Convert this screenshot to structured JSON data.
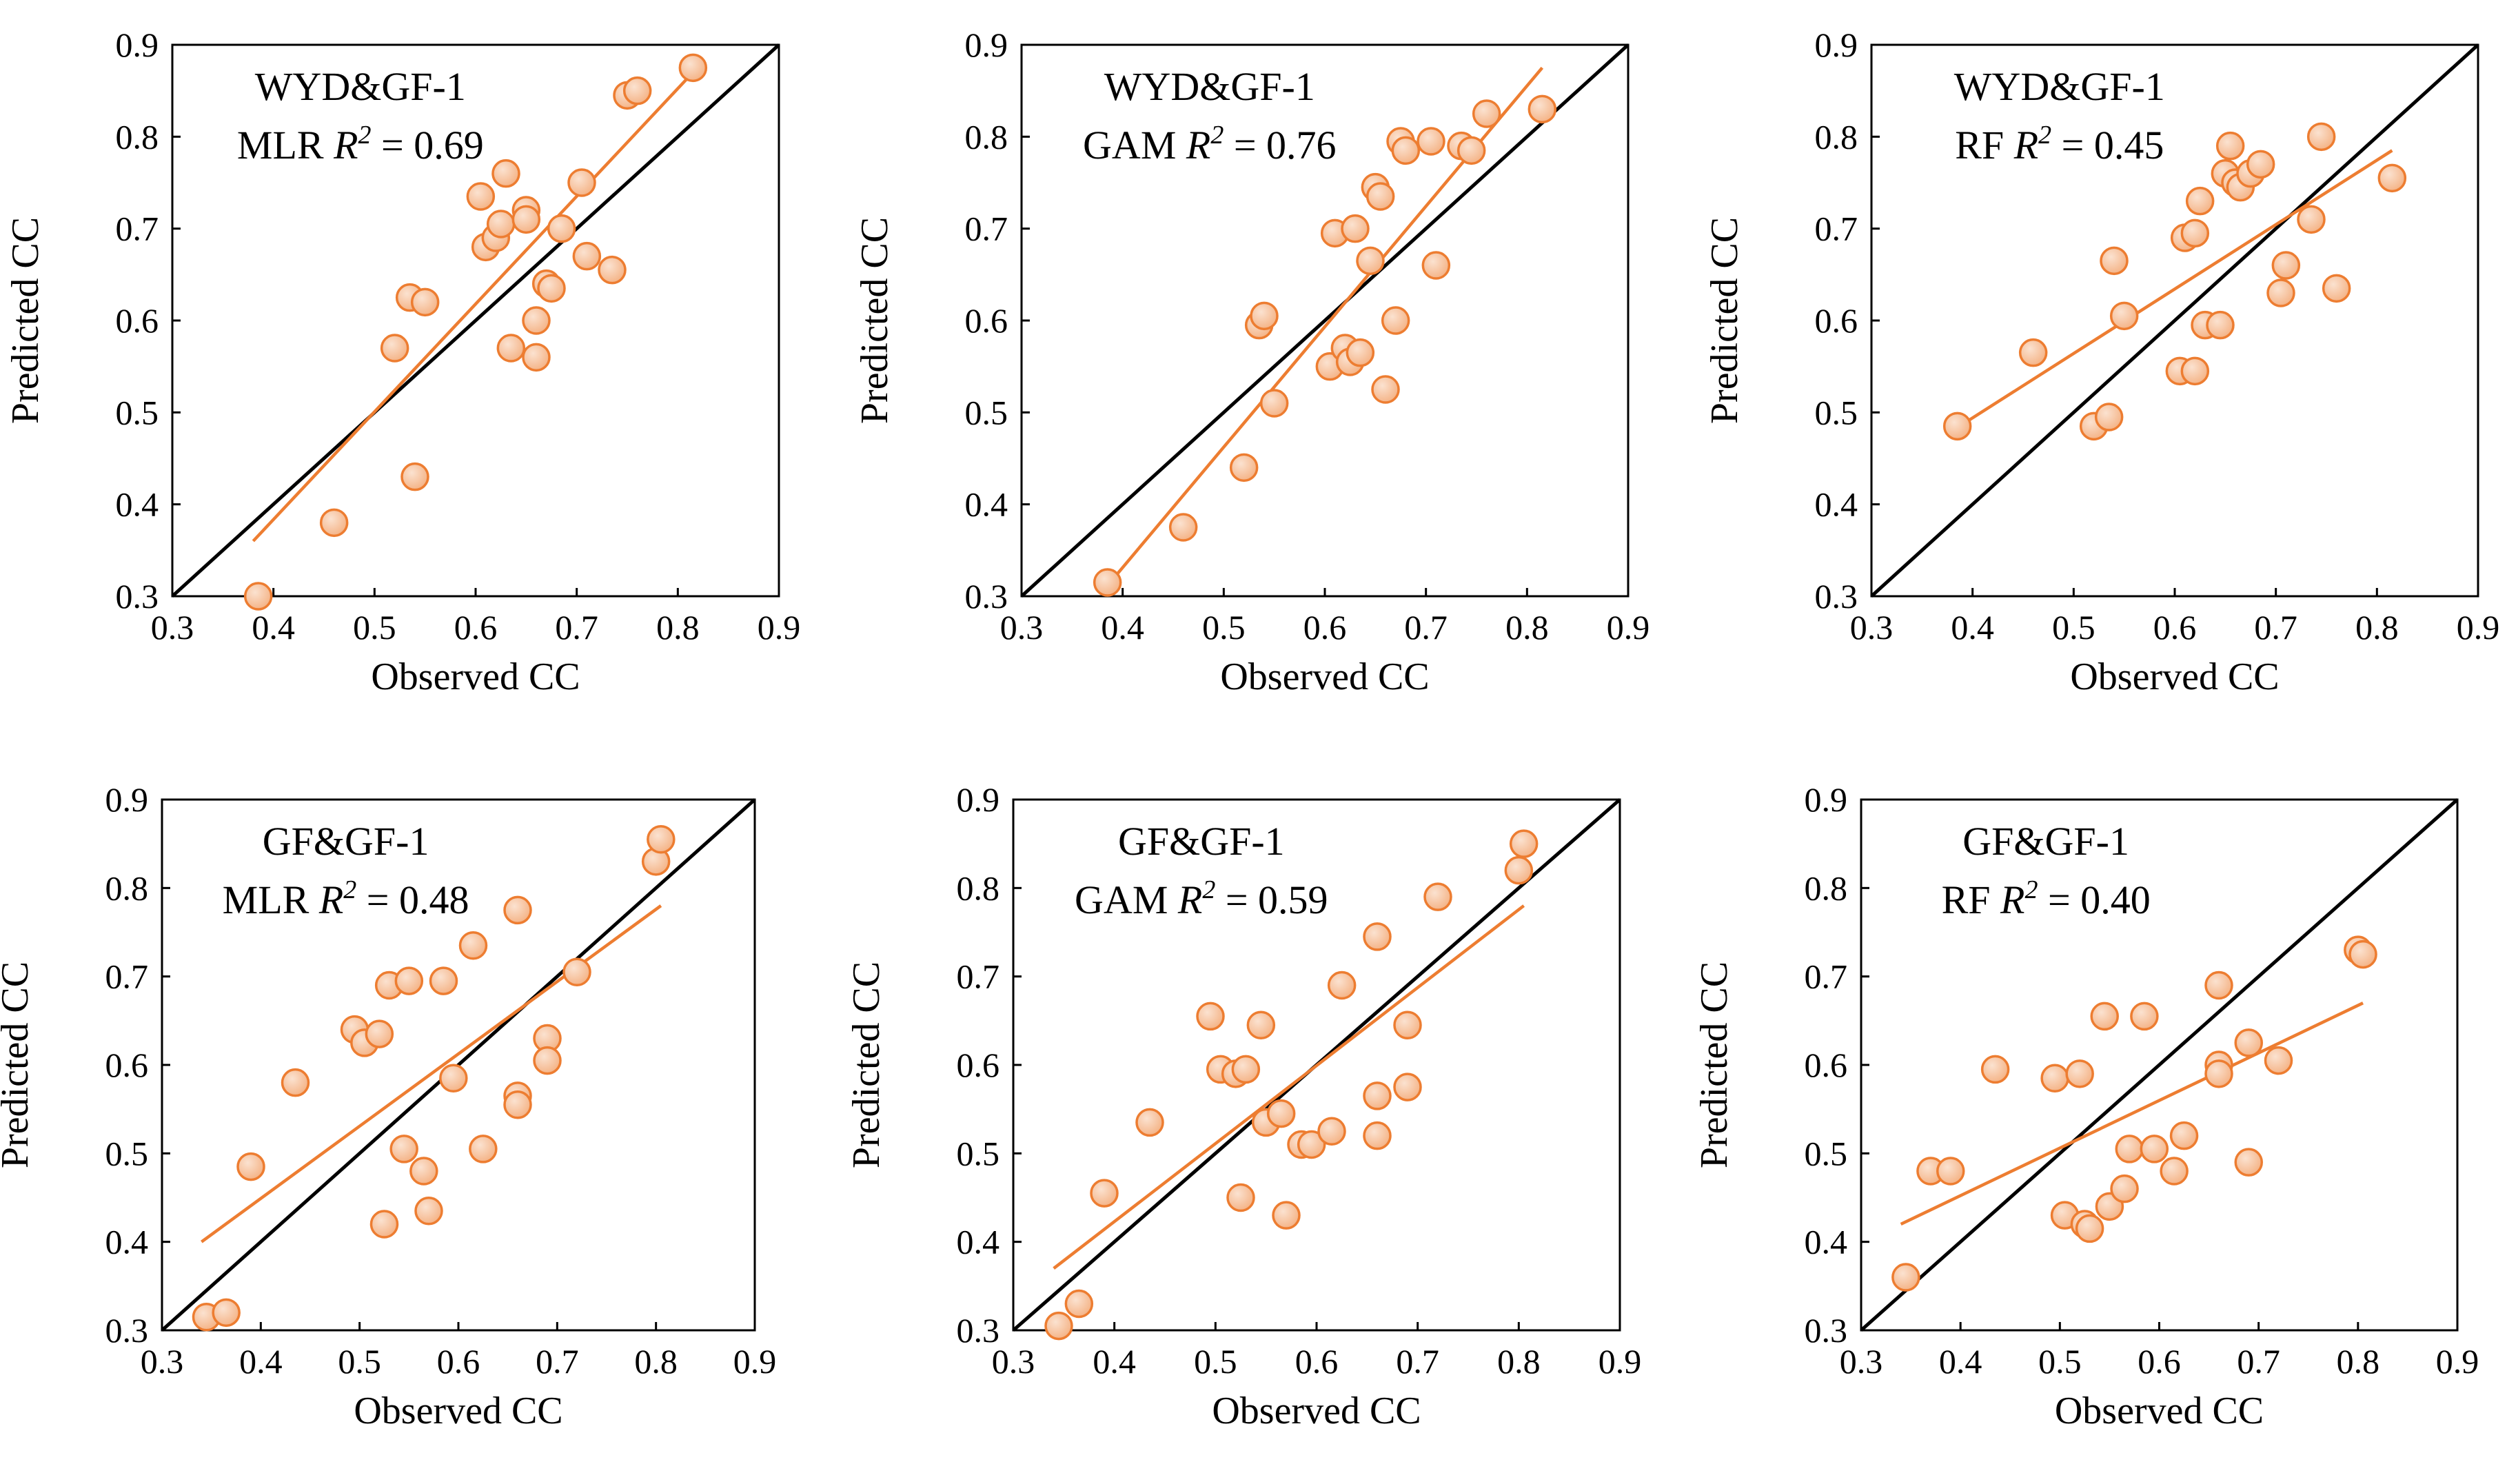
{
  "colors": {
    "point_fill": "#F4B183",
    "point_highlight": "#FBE2D0",
    "point_stroke": "#ED7D31",
    "fit_line": "#ED7D31",
    "one_to_one_line": "#000000",
    "axes": "#000000"
  },
  "chart_data": [
    {
      "type": "scatter",
      "title": "",
      "xlabel": "Observed CC",
      "ylabel": "Predicted CC",
      "xlim": [
        0.3,
        0.9
      ],
      "ylim": [
        0.3,
        0.9
      ],
      "xticks": [
        "0.3",
        "0.4",
        "0.5",
        "0.6",
        "0.7",
        "0.8",
        "0.9"
      ],
      "yticks": [
        "0.3",
        "0.4",
        "0.5",
        "0.6",
        "0.7",
        "0.8",
        "0.9"
      ],
      "annotation": {
        "dataset": "WYD&GF-1",
        "model": "MLR",
        "r2_symbol": "R",
        "r2_exp": "2",
        "r2_text": " = 0.69"
      },
      "fit_line": {
        "x": [
          0.38,
          0.815
        ],
        "y": [
          0.36,
          0.87
        ]
      },
      "one_to_one": [
        0.3,
        0.9
      ],
      "points": [
        {
          "x": 0.385,
          "y": 0.3
        },
        {
          "x": 0.46,
          "y": 0.38
        },
        {
          "x": 0.54,
          "y": 0.43
        },
        {
          "x": 0.52,
          "y": 0.57
        },
        {
          "x": 0.535,
          "y": 0.625
        },
        {
          "x": 0.55,
          "y": 0.62
        },
        {
          "x": 0.605,
          "y": 0.735
        },
        {
          "x": 0.61,
          "y": 0.68
        },
        {
          "x": 0.62,
          "y": 0.69
        },
        {
          "x": 0.625,
          "y": 0.705
        },
        {
          "x": 0.63,
          "y": 0.76
        },
        {
          "x": 0.635,
          "y": 0.57
        },
        {
          "x": 0.65,
          "y": 0.72
        },
        {
          "x": 0.65,
          "y": 0.71
        },
        {
          "x": 0.66,
          "y": 0.6
        },
        {
          "x": 0.66,
          "y": 0.56
        },
        {
          "x": 0.67,
          "y": 0.64
        },
        {
          "x": 0.675,
          "y": 0.635
        },
        {
          "x": 0.685,
          "y": 0.7
        },
        {
          "x": 0.705,
          "y": 0.75
        },
        {
          "x": 0.71,
          "y": 0.67
        },
        {
          "x": 0.735,
          "y": 0.655
        },
        {
          "x": 0.75,
          "y": 0.845
        },
        {
          "x": 0.76,
          "y": 0.85
        },
        {
          "x": 0.815,
          "y": 0.875
        }
      ]
    },
    {
      "type": "scatter",
      "title": "",
      "xlabel": "Observed CC",
      "ylabel": "Predicted CC",
      "xlim": [
        0.3,
        0.9
      ],
      "ylim": [
        0.3,
        0.9
      ],
      "xticks": [
        "0.3",
        "0.4",
        "0.5",
        "0.6",
        "0.7",
        "0.8",
        "0.9"
      ],
      "yticks": [
        "0.3",
        "0.4",
        "0.5",
        "0.6",
        "0.7",
        "0.8",
        "0.9"
      ],
      "annotation": {
        "dataset": "WYD&GF-1",
        "model": "GAM",
        "r2_symbol": "R",
        "r2_exp": "2",
        "r2_text": " = 0.76"
      },
      "fit_line": {
        "x": [
          0.38,
          0.815
        ],
        "y": [
          0.305,
          0.875
        ]
      },
      "one_to_one": [
        0.3,
        0.9
      ],
      "points": [
        {
          "x": 0.385,
          "y": 0.315
        },
        {
          "x": 0.46,
          "y": 0.375
        },
        {
          "x": 0.52,
          "y": 0.44
        },
        {
          "x": 0.55,
          "y": 0.51
        },
        {
          "x": 0.535,
          "y": 0.595
        },
        {
          "x": 0.54,
          "y": 0.605
        },
        {
          "x": 0.605,
          "y": 0.55
        },
        {
          "x": 0.61,
          "y": 0.695
        },
        {
          "x": 0.62,
          "y": 0.57
        },
        {
          "x": 0.625,
          "y": 0.555
        },
        {
          "x": 0.63,
          "y": 0.7
        },
        {
          "x": 0.635,
          "y": 0.565
        },
        {
          "x": 0.645,
          "y": 0.665
        },
        {
          "x": 0.65,
          "y": 0.745
        },
        {
          "x": 0.655,
          "y": 0.735
        },
        {
          "x": 0.66,
          "y": 0.525
        },
        {
          "x": 0.67,
          "y": 0.6
        },
        {
          "x": 0.675,
          "y": 0.795
        },
        {
          "x": 0.68,
          "y": 0.785
        },
        {
          "x": 0.705,
          "y": 0.795
        },
        {
          "x": 0.71,
          "y": 0.66
        },
        {
          "x": 0.735,
          "y": 0.79
        },
        {
          "x": 0.745,
          "y": 0.785
        },
        {
          "x": 0.76,
          "y": 0.825
        },
        {
          "x": 0.815,
          "y": 0.83
        }
      ]
    },
    {
      "type": "scatter",
      "title": "",
      "xlabel": "Observed CC",
      "ylabel": "Predicted CC",
      "xlim": [
        0.3,
        0.9
      ],
      "ylim": [
        0.3,
        0.9
      ],
      "xticks": [
        "0.3",
        "0.4",
        "0.5",
        "0.6",
        "0.7",
        "0.8",
        "0.9"
      ],
      "yticks": [
        "0.3",
        "0.4",
        "0.5",
        "0.6",
        "0.7",
        "0.8",
        "0.9"
      ],
      "annotation": {
        "dataset": "WYD&GF-1",
        "model": "RF",
        "r2_symbol": "R",
        "r2_exp": "2",
        "r2_text": " = 0.45"
      },
      "fit_line": {
        "x": [
          0.38,
          0.815
        ],
        "y": [
          0.48,
          0.785
        ]
      },
      "one_to_one": [
        0.3,
        0.9
      ],
      "points": [
        {
          "x": 0.385,
          "y": 0.485
        },
        {
          "x": 0.46,
          "y": 0.565
        },
        {
          "x": 0.52,
          "y": 0.485
        },
        {
          "x": 0.535,
          "y": 0.495
        },
        {
          "x": 0.54,
          "y": 0.665
        },
        {
          "x": 0.55,
          "y": 0.605
        },
        {
          "x": 0.605,
          "y": 0.545
        },
        {
          "x": 0.61,
          "y": 0.69
        },
        {
          "x": 0.62,
          "y": 0.695
        },
        {
          "x": 0.62,
          "y": 0.545
        },
        {
          "x": 0.63,
          "y": 0.595
        },
        {
          "x": 0.625,
          "y": 0.73
        },
        {
          "x": 0.645,
          "y": 0.595
        },
        {
          "x": 0.65,
          "y": 0.76
        },
        {
          "x": 0.655,
          "y": 0.79
        },
        {
          "x": 0.66,
          "y": 0.75
        },
        {
          "x": 0.665,
          "y": 0.745
        },
        {
          "x": 0.675,
          "y": 0.76
        },
        {
          "x": 0.685,
          "y": 0.77
        },
        {
          "x": 0.705,
          "y": 0.63
        },
        {
          "x": 0.71,
          "y": 0.66
        },
        {
          "x": 0.735,
          "y": 0.71
        },
        {
          "x": 0.745,
          "y": 0.8
        },
        {
          "x": 0.76,
          "y": 0.635
        },
        {
          "x": 0.815,
          "y": 0.755
        }
      ]
    },
    {
      "type": "scatter",
      "title": "",
      "xlabel": "Observed CC",
      "ylabel": "Predicted CC",
      "xlim": [
        0.3,
        0.9
      ],
      "ylim": [
        0.3,
        0.9
      ],
      "xticks": [
        "0.3",
        "0.4",
        "0.5",
        "0.6",
        "0.7",
        "0.8",
        "0.9"
      ],
      "yticks": [
        "0.3",
        "0.4",
        "0.5",
        "0.6",
        "0.7",
        "0.8",
        "0.9"
      ],
      "annotation": {
        "dataset": "GF&GF-1",
        "model": "MLR",
        "r2_symbol": "R",
        "r2_exp": "2",
        "r2_text": " = 0.48"
      },
      "fit_line": {
        "x": [
          0.34,
          0.805
        ],
        "y": [
          0.4,
          0.78
        ]
      },
      "one_to_one": [
        0.3,
        0.9
      ],
      "points": [
        {
          "x": 0.345,
          "y": 0.315
        },
        {
          "x": 0.365,
          "y": 0.32
        },
        {
          "x": 0.39,
          "y": 0.485
        },
        {
          "x": 0.435,
          "y": 0.58
        },
        {
          "x": 0.495,
          "y": 0.64
        },
        {
          "x": 0.505,
          "y": 0.625
        },
        {
          "x": 0.52,
          "y": 0.635
        },
        {
          "x": 0.525,
          "y": 0.42
        },
        {
          "x": 0.53,
          "y": 0.69
        },
        {
          "x": 0.545,
          "y": 0.505
        },
        {
          "x": 0.55,
          "y": 0.695
        },
        {
          "x": 0.565,
          "y": 0.48
        },
        {
          "x": 0.57,
          "y": 0.435
        },
        {
          "x": 0.585,
          "y": 0.695
        },
        {
          "x": 0.595,
          "y": 0.585
        },
        {
          "x": 0.615,
          "y": 0.735
        },
        {
          "x": 0.625,
          "y": 0.505
        },
        {
          "x": 0.66,
          "y": 0.775
        },
        {
          "x": 0.66,
          "y": 0.565
        },
        {
          "x": 0.66,
          "y": 0.555
        },
        {
          "x": 0.69,
          "y": 0.63
        },
        {
          "x": 0.69,
          "y": 0.605
        },
        {
          "x": 0.72,
          "y": 0.705
        },
        {
          "x": 0.8,
          "y": 0.83
        },
        {
          "x": 0.805,
          "y": 0.855
        }
      ]
    },
    {
      "type": "scatter",
      "title": "",
      "xlabel": "Observed CC",
      "ylabel": "Predicted CC",
      "xlim": [
        0.3,
        0.9
      ],
      "ylim": [
        0.3,
        0.9
      ],
      "xticks": [
        "0.3",
        "0.4",
        "0.5",
        "0.6",
        "0.7",
        "0.8",
        "0.9"
      ],
      "yticks": [
        "0.3",
        "0.4",
        "0.5",
        "0.6",
        "0.7",
        "0.8",
        "0.9"
      ],
      "annotation": {
        "dataset": "GF&GF-1",
        "model": "GAM",
        "r2_symbol": "R",
        "r2_exp": "2",
        "r2_text": " = 0.59"
      },
      "fit_line": {
        "x": [
          0.34,
          0.805
        ],
        "y": [
          0.37,
          0.78
        ]
      },
      "one_to_one": [
        0.3,
        0.9
      ],
      "points": [
        {
          "x": 0.345,
          "y": 0.305
        },
        {
          "x": 0.365,
          "y": 0.33
        },
        {
          "x": 0.39,
          "y": 0.455
        },
        {
          "x": 0.435,
          "y": 0.535
        },
        {
          "x": 0.495,
          "y": 0.655
        },
        {
          "x": 0.505,
          "y": 0.595
        },
        {
          "x": 0.52,
          "y": 0.59
        },
        {
          "x": 0.525,
          "y": 0.45
        },
        {
          "x": 0.53,
          "y": 0.595
        },
        {
          "x": 0.545,
          "y": 0.645
        },
        {
          "x": 0.55,
          "y": 0.535
        },
        {
          "x": 0.565,
          "y": 0.545
        },
        {
          "x": 0.57,
          "y": 0.43
        },
        {
          "x": 0.585,
          "y": 0.51
        },
        {
          "x": 0.595,
          "y": 0.51
        },
        {
          "x": 0.615,
          "y": 0.525
        },
        {
          "x": 0.625,
          "y": 0.69
        },
        {
          "x": 0.66,
          "y": 0.745
        },
        {
          "x": 0.66,
          "y": 0.565
        },
        {
          "x": 0.66,
          "y": 0.52
        },
        {
          "x": 0.69,
          "y": 0.575
        },
        {
          "x": 0.69,
          "y": 0.645
        },
        {
          "x": 0.72,
          "y": 0.79
        },
        {
          "x": 0.8,
          "y": 0.82
        },
        {
          "x": 0.805,
          "y": 0.85
        }
      ]
    },
    {
      "type": "scatter",
      "title": "",
      "xlabel": "Observed CC",
      "ylabel": "Predicted CC",
      "xlim": [
        0.3,
        0.9
      ],
      "ylim": [
        0.3,
        0.9
      ],
      "xticks": [
        "0.3",
        "0.4",
        "0.5",
        "0.6",
        "0.7",
        "0.8",
        "0.9"
      ],
      "yticks": [
        "0.3",
        "0.4",
        "0.5",
        "0.6",
        "0.7",
        "0.8",
        "0.9"
      ],
      "annotation": {
        "dataset": "GF&GF-1",
        "model": "RF",
        "r2_symbol": "R",
        "r2_exp": "2",
        "r2_text": " = 0.40"
      },
      "fit_line": {
        "x": [
          0.34,
          0.805
        ],
        "y": [
          0.42,
          0.67
        ]
      },
      "one_to_one": [
        0.3,
        0.9
      ],
      "points": [
        {
          "x": 0.345,
          "y": 0.36
        },
        {
          "x": 0.37,
          "y": 0.48
        },
        {
          "x": 0.39,
          "y": 0.48
        },
        {
          "x": 0.435,
          "y": 0.595
        },
        {
          "x": 0.495,
          "y": 0.585
        },
        {
          "x": 0.505,
          "y": 0.43
        },
        {
          "x": 0.52,
          "y": 0.59
        },
        {
          "x": 0.525,
          "y": 0.42
        },
        {
          "x": 0.53,
          "y": 0.415
        },
        {
          "x": 0.545,
          "y": 0.655
        },
        {
          "x": 0.55,
          "y": 0.44
        },
        {
          "x": 0.565,
          "y": 0.46
        },
        {
          "x": 0.57,
          "y": 0.505
        },
        {
          "x": 0.585,
          "y": 0.655
        },
        {
          "x": 0.595,
          "y": 0.505
        },
        {
          "x": 0.615,
          "y": 0.48
        },
        {
          "x": 0.625,
          "y": 0.52
        },
        {
          "x": 0.66,
          "y": 0.69
        },
        {
          "x": 0.66,
          "y": 0.6
        },
        {
          "x": 0.66,
          "y": 0.59
        },
        {
          "x": 0.69,
          "y": 0.625
        },
        {
          "x": 0.69,
          "y": 0.49
        },
        {
          "x": 0.72,
          "y": 0.605
        },
        {
          "x": 0.8,
          "y": 0.73
        },
        {
          "x": 0.805,
          "y": 0.725
        }
      ]
    }
  ]
}
